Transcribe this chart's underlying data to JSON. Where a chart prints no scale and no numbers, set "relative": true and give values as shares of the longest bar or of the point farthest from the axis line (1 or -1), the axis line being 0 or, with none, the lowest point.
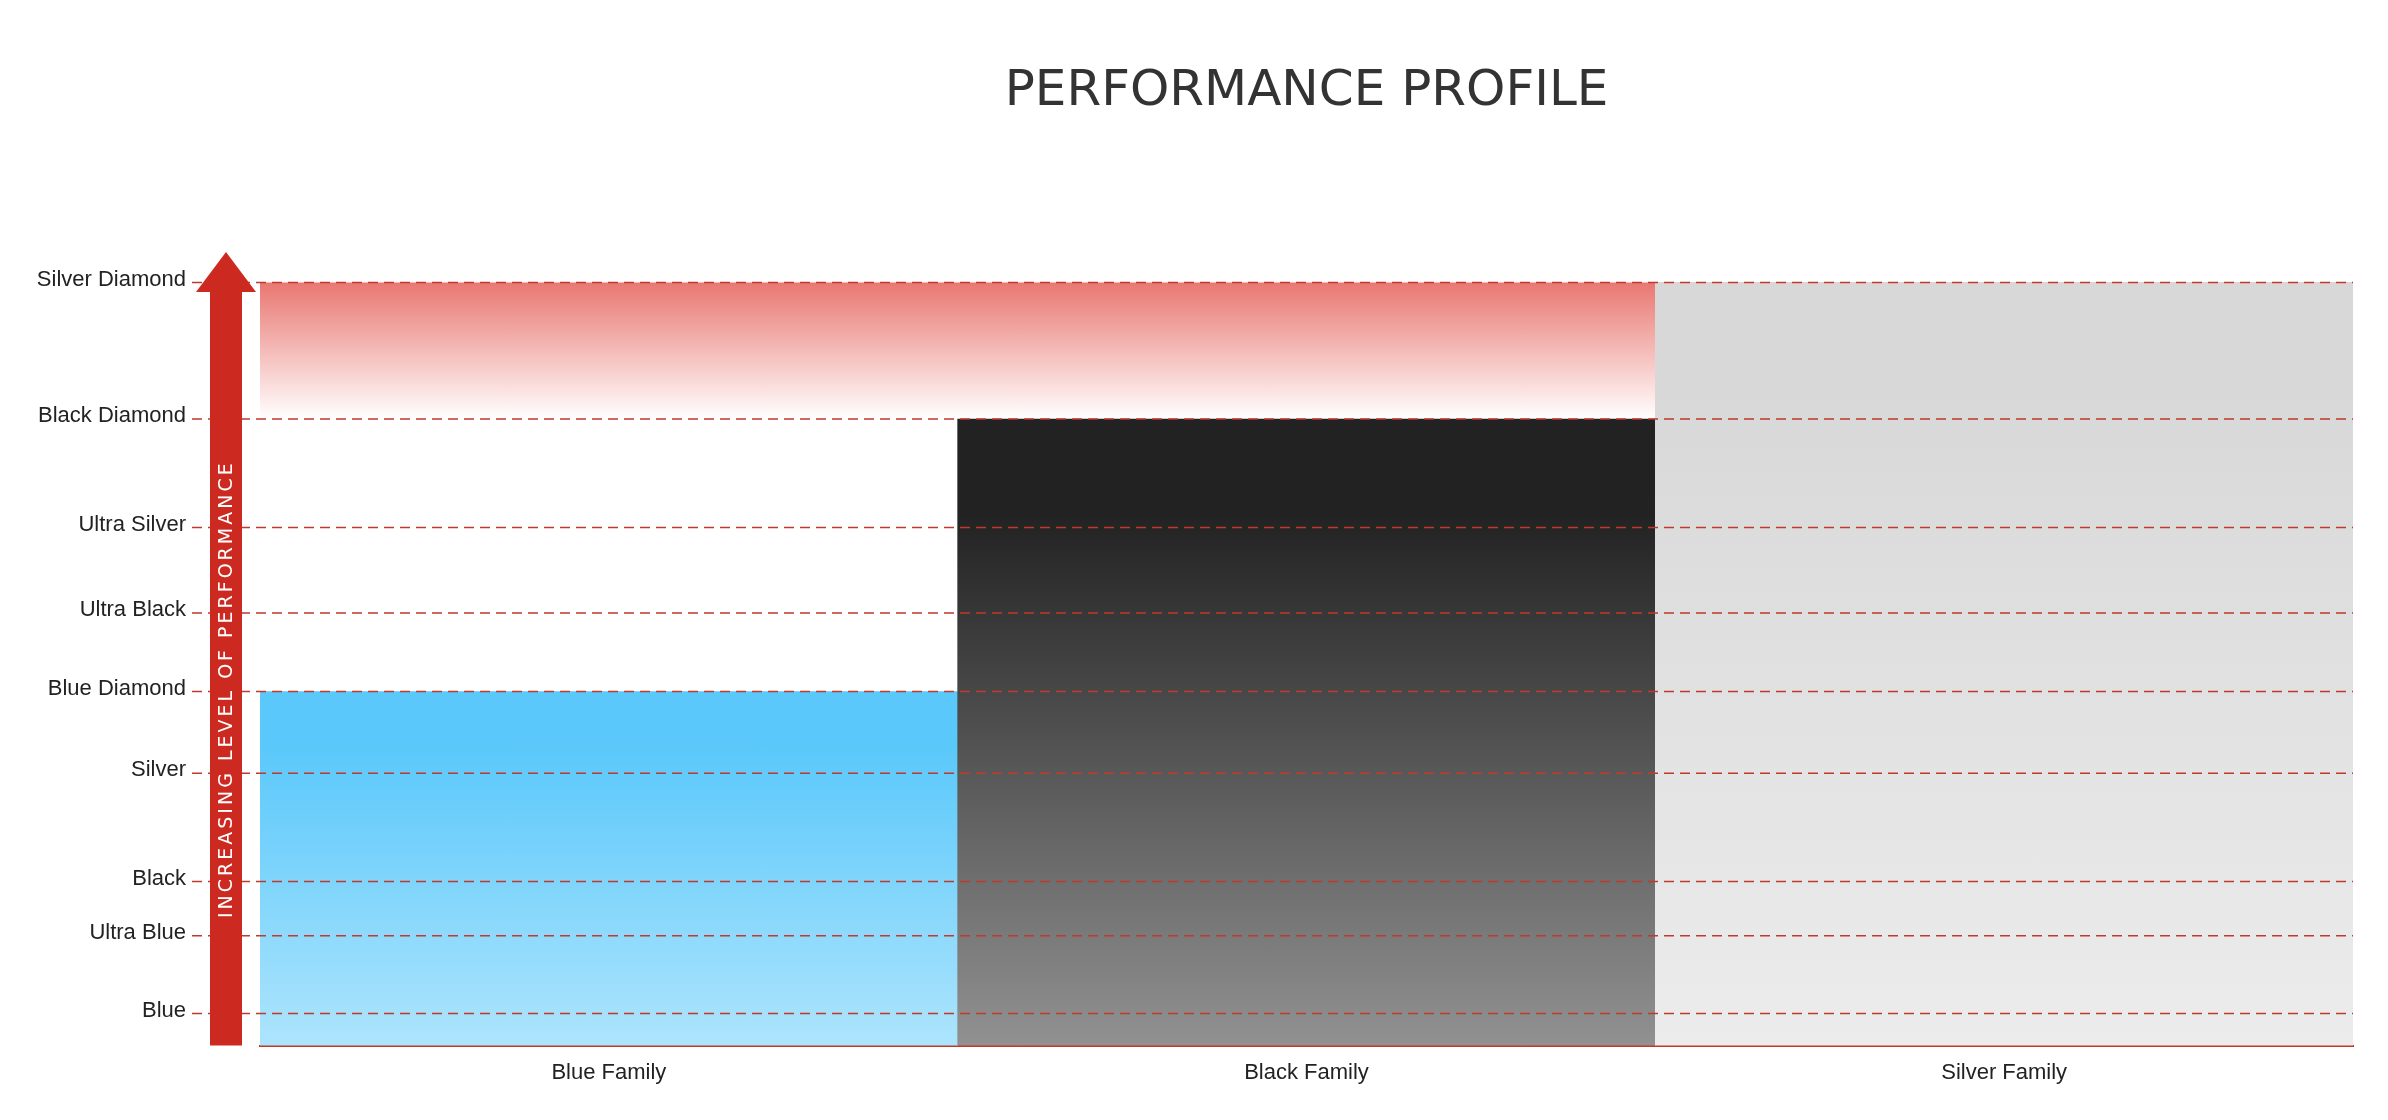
{
  "chart_data": {
    "type": "bar",
    "title": "PERFORMANCE PROFILE",
    "ylabel": "INCREASING LEVEL OF PERFORMANCE",
    "relative": true,
    "categories": [
      "Blue Family",
      "Black Family",
      "Silver Family"
    ],
    "values": [
      0.464,
      0.821,
      1
    ],
    "colors": [
      "#5ac8fa",
      "#222222",
      "#d8d8d8"
    ],
    "ref_lines": [
      {
        "axis": "y",
        "value": 0.042,
        "label": "Blue",
        "color": "#c0392b",
        "line_style": "dashed"
      },
      {
        "axis": "y",
        "value": 0.144,
        "label": "Ultra Blue",
        "color": "#c0392b",
        "line_style": "dashed"
      },
      {
        "axis": "y",
        "value": 0.215,
        "label": "Black",
        "color": "#c0392b",
        "line_style": "dashed"
      },
      {
        "axis": "y",
        "value": 0.357,
        "label": "Silver",
        "color": "#c0392b",
        "line_style": "dashed"
      },
      {
        "axis": "y",
        "value": 0.464,
        "label": "Blue Diamond",
        "color": "#c0392b",
        "line_style": "dashed"
      },
      {
        "axis": "y",
        "value": 0.567,
        "label": "Ultra Black",
        "color": "#c0392b",
        "line_style": "dashed"
      },
      {
        "axis": "y",
        "value": 0.679,
        "label": "Ultra Silver",
        "color": "#c0392b",
        "line_style": "dashed"
      },
      {
        "axis": "y",
        "value": 0.821,
        "label": "Black Diamond",
        "color": "#c0392b",
        "line_style": "dashed"
      },
      {
        "axis": "y",
        "value": 1,
        "label": "Silver Diamond",
        "color": "#c0392b",
        "line_style": "dashed"
      }
    ],
    "legend": false,
    "bands": [
      {
        "axis": "y",
        "from": 0.821,
        "to": 1,
        "color": "#e03a32"
      }
    ]
  }
}
